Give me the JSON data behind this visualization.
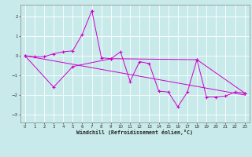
{
  "xlabel": "Windchill (Refroidissement éolien,°C)",
  "bg_color": "#c8eaea",
  "grid_color": "#ffffff",
  "line_color": "#cc00cc",
  "xlim": [
    -0.5,
    23.5
  ],
  "ylim": [
    -3.4,
    2.6
  ],
  "xticks": [
    0,
    1,
    2,
    3,
    4,
    5,
    6,
    7,
    8,
    9,
    10,
    11,
    12,
    13,
    14,
    15,
    16,
    17,
    18,
    19,
    20,
    21,
    22,
    23
  ],
  "yticks": [
    -3,
    -2,
    -1,
    0,
    1,
    2
  ],
  "series1_x": [
    0,
    1,
    2,
    3,
    4,
    5,
    6,
    7,
    8,
    9,
    10,
    11,
    12,
    13,
    14,
    15,
    16,
    17,
    18,
    19,
    20,
    21,
    22,
    23
  ],
  "series1_y": [
    0.0,
    -0.05,
    -0.05,
    0.1,
    0.2,
    0.25,
    1.1,
    2.3,
    -0.1,
    -0.15,
    0.2,
    -1.3,
    -0.3,
    -0.4,
    -1.8,
    -1.85,
    -2.6,
    -1.85,
    -0.2,
    -2.1,
    -2.1,
    -2.05,
    -1.85,
    -1.9
  ],
  "series2_x": [
    0,
    3,
    5,
    9,
    18,
    23
  ],
  "series2_y": [
    0.0,
    -1.6,
    -0.55,
    -0.15,
    -0.2,
    -1.9
  ],
  "trendline_x": [
    0,
    23
  ],
  "trendline_y": [
    0.0,
    -2.0
  ]
}
